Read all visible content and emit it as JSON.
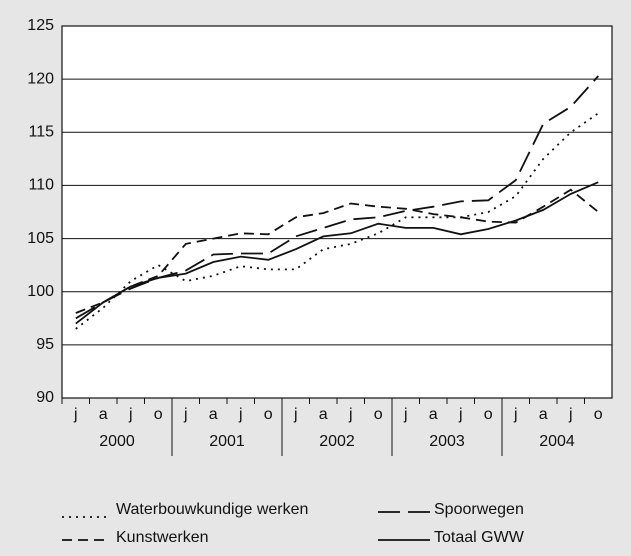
{
  "chart_data": {
    "type": "line",
    "categories": [
      "j",
      "a",
      "j",
      "o",
      "j",
      "a",
      "j",
      "o",
      "j",
      "a",
      "j",
      "o",
      "j",
      "a",
      "j",
      "o",
      "j",
      "a",
      "j",
      "o"
    ],
    "groups": [
      "2000",
      "2001",
      "2002",
      "2003",
      "2004"
    ],
    "ylim": [
      90,
      125
    ],
    "yticks": [
      90,
      95,
      100,
      105,
      110,
      115,
      120,
      125
    ],
    "grid": true,
    "series": [
      {
        "name": "Waterbouwkundige werken",
        "color": "#111111",
        "dash": "2,5",
        "values": [
          96.5,
          98.5,
          101,
          102.5,
          101,
          101.5,
          102.4,
          102.1,
          102.1,
          104,
          104.5,
          105.5,
          107,
          107,
          107,
          107.5,
          109,
          112.5,
          115,
          116.8
        ]
      },
      {
        "name": "Spoorwegen",
        "color": "#111111",
        "dash": "22,8",
        "values": [
          97.5,
          99,
          100.3,
          101.3,
          102,
          103.5,
          103.6,
          103.6,
          105.2,
          106,
          106.8,
          107,
          107.6,
          108,
          108.5,
          108.6,
          110.5,
          115.8,
          117.4,
          120.3
        ]
      },
      {
        "name": "Kunstwerken",
        "color": "#111111",
        "dash": "10,6",
        "values": [
          98,
          99,
          100.5,
          101.5,
          104.5,
          105,
          105.5,
          105.4,
          107,
          107.4,
          108.3,
          108,
          107.8,
          107.3,
          107,
          106.6,
          106.5,
          108,
          109.6,
          107.5
        ]
      },
      {
        "name": "Totaal GWW",
        "color": "#111111",
        "dash": "none",
        "values": [
          97,
          99,
          100.5,
          101.3,
          101.7,
          102.8,
          103.3,
          103,
          104,
          105.2,
          105.5,
          106.4,
          106,
          106,
          105.4,
          105.9,
          106.7,
          107.7,
          109.2,
          110.3
        ]
      }
    ]
  }
}
